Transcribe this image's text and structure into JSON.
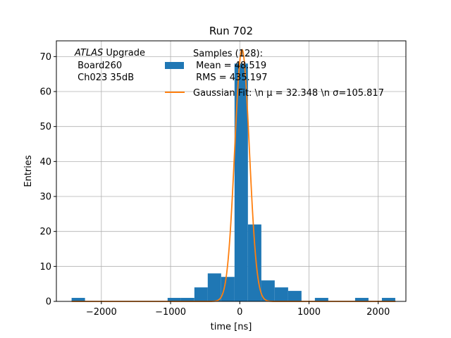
{
  "chart_data": {
    "type": "bar",
    "title": "Run 702",
    "xlabel": "time [ns]",
    "ylabel": "Entries",
    "xlim": [
      -2650,
      2400
    ],
    "ylim": [
      0,
      74.5
    ],
    "xticks": [
      -2000,
      -1000,
      0,
      1000,
      2000
    ],
    "xtick_labels": [
      "−2000",
      "−1000",
      "0",
      "1000",
      "2000"
    ],
    "yticks": [
      0,
      10,
      20,
      30,
      40,
      50,
      60,
      70
    ],
    "ytick_labels": [
      "0",
      "10",
      "20",
      "30",
      "40",
      "50",
      "60",
      "70"
    ],
    "grid": true,
    "legend_placement": "top-right",
    "annotation": {
      "italic": "ATLAS",
      "line1_rest": " Upgrade",
      "line2": " Board260",
      "line3": " Ch023 35dB"
    },
    "histogram": {
      "name_lines": [
        "Samples (128):",
        " Mean = 48.519",
        " RMS = 435.197"
      ],
      "color": "#1f77b4",
      "bin_width": 193.5,
      "bins": [
        {
          "x0": -2430,
          "count": 1
        },
        {
          "x0": -1043,
          "count": 1
        },
        {
          "x0": -850,
          "count": 1
        },
        {
          "x0": -656,
          "count": 4
        },
        {
          "x0": -463,
          "count": 8
        },
        {
          "x0": -269,
          "count": 7
        },
        {
          "x0": -76,
          "count": 68
        },
        {
          "x0": 118,
          "count": 22
        },
        {
          "x0": 311,
          "count": 6
        },
        {
          "x0": 505,
          "count": 4
        },
        {
          "x0": 698,
          "count": 3
        },
        {
          "x0": 1085,
          "count": 1
        },
        {
          "x0": 1666,
          "count": 1
        },
        {
          "x0": 2053,
          "count": 1
        }
      ]
    },
    "fit": {
      "name": "Gaussian Fit: \\n μ = 32.348 \\n σ=105.817",
      "type": "gaussian",
      "amplitude": 72,
      "mu": 32.348,
      "sigma": 105.817,
      "x_range": [
        -2430,
        2250
      ],
      "color": "#ff7f0e"
    }
  }
}
